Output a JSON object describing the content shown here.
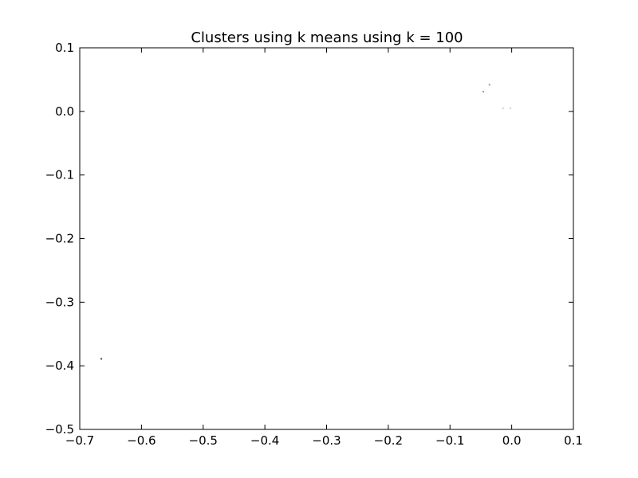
{
  "chart_data": {
    "type": "scatter",
    "title": "Clusters using k means using k = 100",
    "xlabel": "",
    "ylabel": "",
    "xlim": [
      -0.7,
      0.1
    ],
    "ylim": [
      -0.5,
      0.1
    ],
    "xticks": [
      -0.7,
      -0.6,
      -0.5,
      -0.4,
      -0.3,
      -0.2,
      -0.1,
      0.0,
      0.1
    ],
    "xtick_labels": [
      "−0.7",
      "−0.6",
      "−0.5",
      "−0.4",
      "−0.3",
      "−0.2",
      "−0.1",
      "0.0",
      "0.1"
    ],
    "yticks": [
      0.1,
      0.0,
      -0.1,
      -0.2,
      -0.3,
      -0.4,
      -0.5
    ],
    "ytick_labels": [
      "0.1",
      "0.0",
      "−0.1",
      "−0.2",
      "−0.3",
      "−0.4",
      "−0.5"
    ],
    "grid": false,
    "points": [
      {
        "x": -0.665,
        "y": -0.389,
        "color": "#444444"
      },
      {
        "x": -0.046,
        "y": 0.031,
        "color": "#999999"
      },
      {
        "x": -0.036,
        "y": 0.042,
        "color": "#999999"
      },
      {
        "x": -0.014,
        "y": 0.005,
        "color": "#cccccc"
      },
      {
        "x": -0.002,
        "y": 0.005,
        "color": "#cccccc"
      }
    ]
  }
}
